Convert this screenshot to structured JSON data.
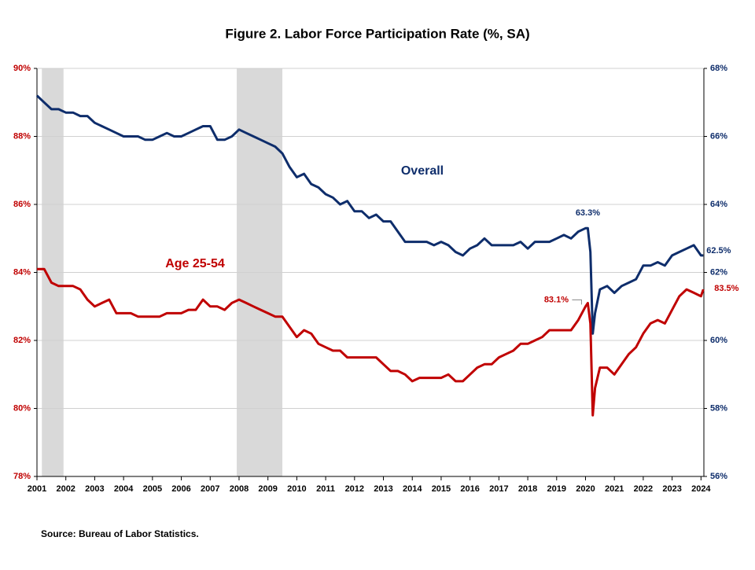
{
  "chart_data": {
    "type": "line",
    "title": "Figure 2. Labor Force Participation  Rate (%, SA)",
    "source": "Source: Bureau of Labor Statistics.",
    "x": [
      2001,
      2001.25,
      2001.5,
      2001.75,
      2002,
      2002.25,
      2002.5,
      2002.75,
      2003,
      2003.25,
      2003.5,
      2003.75,
      2004,
      2004.25,
      2004.5,
      2004.75,
      2005,
      2005.25,
      2005.5,
      2005.75,
      2006,
      2006.25,
      2006.5,
      2006.75,
      2007,
      2007.25,
      2007.5,
      2007.75,
      2008,
      2008.25,
      2008.5,
      2008.75,
      2009,
      2009.25,
      2009.5,
      2009.75,
      2010,
      2010.25,
      2010.5,
      2010.75,
      2011,
      2011.25,
      2011.5,
      2011.75,
      2012,
      2012.25,
      2012.5,
      2012.75,
      2013,
      2013.25,
      2013.5,
      2013.75,
      2014,
      2014.25,
      2014.5,
      2014.75,
      2015,
      2015.25,
      2015.5,
      2015.75,
      2016,
      2016.25,
      2016.5,
      2016.75,
      2017,
      2017.25,
      2017.5,
      2017.75,
      2018,
      2018.25,
      2018.5,
      2018.75,
      2019,
      2019.25,
      2019.5,
      2019.75,
      2020,
      2020.08,
      2020.17,
      2020.25,
      2020.33,
      2020.5,
      2020.75,
      2021,
      2021.25,
      2021.5,
      2021.75,
      2022,
      2022.25,
      2022.5,
      2022.75,
      2023,
      2023.25,
      2023.5,
      2023.75,
      2024,
      2024.08
    ],
    "series": [
      {
        "name": "Overall",
        "color": "#0e2d6b",
        "axis": "y2",
        "values": [
          67.2,
          67.0,
          66.8,
          66.8,
          66.7,
          66.7,
          66.6,
          66.6,
          66.4,
          66.3,
          66.2,
          66.1,
          66.0,
          66.0,
          66.0,
          65.9,
          65.9,
          66.0,
          66.1,
          66.0,
          66.0,
          66.1,
          66.2,
          66.3,
          66.3,
          65.9,
          65.9,
          66.0,
          66.2,
          66.1,
          66.0,
          65.9,
          65.8,
          65.7,
          65.5,
          65.1,
          64.8,
          64.9,
          64.6,
          64.5,
          64.3,
          64.2,
          64.0,
          64.1,
          63.8,
          63.8,
          63.6,
          63.7,
          63.5,
          63.5,
          63.2,
          62.9,
          62.9,
          62.9,
          62.9,
          62.8,
          62.9,
          62.8,
          62.6,
          62.5,
          62.7,
          62.8,
          63.0,
          62.8,
          62.8,
          62.8,
          62.8,
          62.9,
          62.7,
          62.9,
          62.9,
          62.9,
          63.0,
          63.1,
          63.0,
          63.2,
          63.3,
          63.3,
          62.6,
          60.2,
          60.8,
          61.5,
          61.6,
          61.4,
          61.6,
          61.7,
          61.8,
          62.2,
          62.2,
          62.3,
          62.2,
          62.5,
          62.6,
          62.7,
          62.8,
          62.5,
          62.5
        ]
      },
      {
        "name": "Age 25-54",
        "color": "#c00000",
        "values": [
          84.1,
          84.1,
          83.7,
          83.6,
          83.6,
          83.6,
          83.5,
          83.2,
          83.0,
          83.1,
          83.2,
          82.8,
          82.8,
          82.8,
          82.7,
          82.7,
          82.7,
          82.7,
          82.8,
          82.8,
          82.8,
          82.9,
          82.9,
          83.2,
          83.0,
          83.0,
          82.9,
          83.1,
          83.2,
          83.1,
          83.0,
          82.9,
          82.8,
          82.7,
          82.7,
          82.4,
          82.1,
          82.3,
          82.2,
          81.9,
          81.8,
          81.7,
          81.7,
          81.5,
          81.5,
          81.5,
          81.5,
          81.5,
          81.3,
          81.1,
          81.1,
          81.0,
          80.8,
          80.9,
          80.9,
          80.9,
          80.9,
          81.0,
          80.8,
          80.8,
          81.0,
          81.2,
          81.3,
          81.3,
          81.5,
          81.6,
          81.7,
          81.9,
          81.9,
          82.0,
          82.1,
          82.3,
          82.3,
          82.3,
          82.3,
          82.6,
          83.0,
          83.1,
          82.5,
          79.8,
          80.6,
          81.2,
          81.2,
          81.0,
          81.3,
          81.6,
          81.8,
          82.2,
          82.5,
          82.6,
          82.5,
          82.9,
          83.3,
          83.5,
          83.4,
          83.3,
          83.5
        ]
      }
    ],
    "annotations": [
      {
        "text": "63.3%",
        "x": 2020.08,
        "y": 63.3,
        "axis": "y2"
      },
      {
        "text": "83.1%",
        "x": 2020.08,
        "y": 83.1
      },
      {
        "text": "62.5%",
        "x": 2024.08,
        "y": 62.5,
        "axis": "y2"
      },
      {
        "text": "83.5%",
        "x": 2024.08,
        "y": 83.5
      }
    ],
    "recessions": [
      [
        2001.17,
        2001.92
      ],
      [
        2007.92,
        2009.5
      ]
    ],
    "xlim": [
      2001,
      2024.1
    ],
    "xticks": [
      2001,
      2002,
      2003,
      2004,
      2005,
      2006,
      2007,
      2008,
      2009,
      2010,
      2011,
      2012,
      2013,
      2014,
      2015,
      2016,
      2017,
      2018,
      2019,
      2020,
      2021,
      2022,
      2023,
      2024
    ],
    "ylim": [
      78,
      90
    ],
    "yticks": [
      {
        "value": 78,
        "label": "78%"
      },
      {
        "value": 80,
        "label": "80%"
      },
      {
        "value": 82,
        "label": "82%"
      },
      {
        "value": 84,
        "label": "84%"
      },
      {
        "value": 86,
        "label": "86%"
      },
      {
        "value": 88,
        "label": "88%"
      },
      {
        "value": 90,
        "label": "90%"
      }
    ],
    "y2lim": [
      56,
      68
    ],
    "y2ticks": [
      {
        "value": 56,
        "label": "56%"
      },
      {
        "value": 58,
        "label": "58%"
      },
      {
        "value": 60,
        "label": "60%"
      },
      {
        "value": 62,
        "label": "62%"
      },
      {
        "value": 64,
        "label": "64%"
      },
      {
        "value": 66,
        "label": "66%"
      },
      {
        "value": 68,
        "label": "68%"
      }
    ],
    "grid": true
  }
}
